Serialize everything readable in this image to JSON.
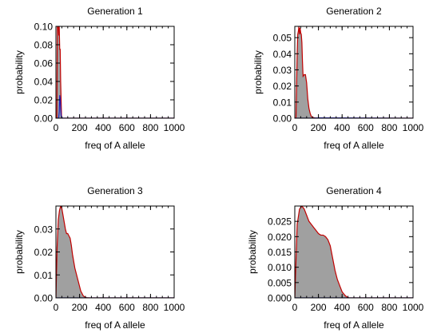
{
  "colors": {
    "fill": "#a0a0a0",
    "envelope": "#c00000",
    "baseline": "#2020c0",
    "axis": "#000000"
  },
  "chart_data": [
    {
      "type": "area",
      "title": "Generation 1",
      "xlabel": "freq of A allele",
      "ylabel": "probability",
      "xlim": [
        0,
        1000
      ],
      "ylim": [
        0,
        0.1
      ],
      "xticks": [
        0,
        200,
        400,
        600,
        800,
        1000
      ],
      "xtick_labels": [
        "0",
        "200",
        "400",
        "600",
        "800",
        "1000"
      ],
      "yticks": [
        0,
        0.02,
        0.04,
        0.06,
        0.08,
        0.1
      ],
      "ytick_labels": [
        "0.00",
        "0.02",
        "0.04",
        "0.06",
        "0.08",
        "0.10"
      ],
      "series": [
        {
          "x": [
            0,
            8,
            12,
            16,
            20,
            24,
            28,
            32,
            36,
            40,
            44,
            48,
            1000
          ],
          "y": [
            0,
            0,
            0.1,
            0.1,
            0.1,
            0.09,
            0.1,
            0.075,
            0.075,
            0.04,
            0.02,
            0,
            0
          ]
        },
        {
          "x": [
            0,
            20,
            24,
            28,
            32,
            36,
            40,
            44,
            48,
            60,
            1000
          ],
          "y": [
            0,
            0,
            0.001,
            0.007,
            0.025,
            0.022,
            0.01,
            0.003,
            0.001,
            0,
            0
          ]
        }
      ]
    },
    {
      "type": "area",
      "title": "Generation 2",
      "xlabel": "freq of A allele",
      "ylabel": "probability",
      "xlim": [
        0,
        1000
      ],
      "ylim": [
        0,
        0.057
      ],
      "xticks": [
        0,
        200,
        400,
        600,
        800,
        1000
      ],
      "xtick_labels": [
        "0",
        "200",
        "400",
        "600",
        "800",
        "1000"
      ],
      "yticks": [
        0,
        0.01,
        0.02,
        0.03,
        0.04,
        0.05
      ],
      "ytick_labels": [
        "0.00",
        "0.01",
        "0.02",
        "0.03",
        "0.04",
        "0.05"
      ],
      "series": [
        {
          "x": [
            0,
            10,
            20,
            25,
            30,
            35,
            40,
            45,
            50,
            55,
            60,
            65,
            70,
            80,
            90,
            100,
            110,
            120,
            130,
            140,
            160,
            180,
            1000
          ],
          "y": [
            0,
            0,
            0.04,
            0.052,
            0.054,
            0.057,
            0.052,
            0.056,
            0.053,
            0.052,
            0.047,
            0.035,
            0.026,
            0.027,
            0.027,
            0.022,
            0.012,
            0.006,
            0.003,
            0.001,
            0.0003,
            0,
            0
          ]
        },
        {
          "x": [
            0,
            150,
            200,
            1000
          ],
          "y": [
            0,
            0,
            0.0002,
            0
          ]
        }
      ]
    },
    {
      "type": "area",
      "title": "Generation 3",
      "xlabel": "freq of A allele",
      "ylabel": "probability",
      "xlim": [
        0,
        1000
      ],
      "ylim": [
        0,
        0.04
      ],
      "xticks": [
        0,
        200,
        400,
        600,
        800,
        1000
      ],
      "xtick_labels": [
        "0",
        "200",
        "400",
        "600",
        "800",
        "1000"
      ],
      "yticks": [
        0,
        0.01,
        0.02,
        0.03
      ],
      "ytick_labels": [
        "0.00",
        "0.01",
        "0.02",
        "0.03"
      ],
      "series": [
        {
          "x": [
            0,
            10,
            20,
            30,
            40,
            50,
            60,
            70,
            80,
            90,
            100,
            110,
            120,
            130,
            140,
            150,
            160,
            170,
            180,
            190,
            200,
            210,
            220,
            230,
            240,
            250,
            260,
            280,
            1000
          ],
          "y": [
            0,
            0.022,
            0.034,
            0.038,
            0.04,
            0.039,
            0.036,
            0.033,
            0.03,
            0.028,
            0.028,
            0.027,
            0.026,
            0.023,
            0.019,
            0.016,
            0.013,
            0.011,
            0.009,
            0.007,
            0.005,
            0.003,
            0.002,
            0.001,
            0.0005,
            0.0002,
            0.0001,
            0,
            0
          ]
        },
        {
          "x": [
            0,
            1000
          ],
          "y": [
            0,
            0
          ]
        }
      ]
    },
    {
      "type": "area",
      "title": "Generation 4",
      "xlabel": "freq of A allele",
      "ylabel": "probability",
      "xlim": [
        0,
        1000
      ],
      "ylim": [
        0,
        0.03
      ],
      "xticks": [
        0,
        200,
        400,
        600,
        800,
        1000
      ],
      "xtick_labels": [
        "0",
        "200",
        "400",
        "600",
        "800",
        "1000"
      ],
      "yticks": [
        0,
        0.005,
        0.01,
        0.015,
        0.02,
        0.025
      ],
      "ytick_labels": [
        "0.000",
        "0.005",
        "0.010",
        "0.015",
        "0.020",
        "0.025"
      ],
      "series": [
        {
          "x": [
            0,
            10,
            20,
            40,
            60,
            80,
            100,
            120,
            140,
            160,
            180,
            200,
            220,
            240,
            260,
            280,
            300,
            320,
            340,
            360,
            380,
            400,
            420,
            440,
            460,
            1000
          ],
          "y": [
            0,
            0.012,
            0.024,
            0.029,
            0.03,
            0.029,
            0.027,
            0.025,
            0.024,
            0.023,
            0.022,
            0.021,
            0.0205,
            0.0205,
            0.02,
            0.019,
            0.017,
            0.013,
            0.009,
            0.006,
            0.004,
            0.002,
            0.001,
            0.0003,
            0,
            0
          ]
        },
        {
          "x": [
            0,
            1000
          ],
          "y": [
            0,
            0
          ]
        }
      ]
    }
  ]
}
